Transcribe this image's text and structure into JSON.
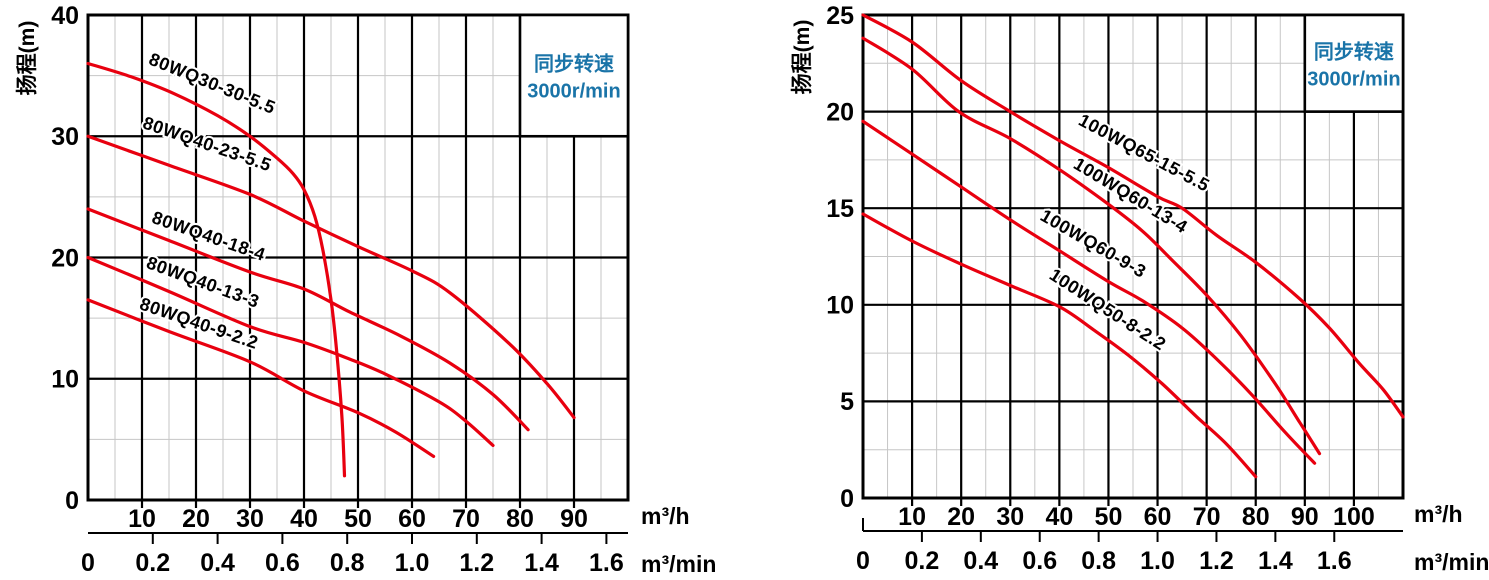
{
  "figure": {
    "ylabel": "扬程(m)",
    "unit_flow_hour": "m³/h",
    "unit_flow_minute": "m³/min",
    "speed_note_line1": "同步转速",
    "speed_note_line2": "3000r/min"
  },
  "colors": {
    "curve_red": "#e8000f",
    "speed_blue": "#1a74a8",
    "grid_minor": "#c6c6c6",
    "grid_major": "#000000",
    "background": "#ffffff"
  },
  "chart_data": [
    {
      "type": "line",
      "title": "同步转速 3000r/min",
      "ylabel": "扬程(m)",
      "xlabel": "m³/h",
      "xlabel2": "m³/min",
      "x_range": [
        0,
        100
      ],
      "y_range": [
        0,
        40
      ],
      "x_major_step": 10,
      "x_minor_step": 5,
      "y_major_step": 10,
      "y_minor_step": 5,
      "grid": "on",
      "y_ticks": [
        0,
        10,
        20,
        30,
        40
      ],
      "x_ticks": [
        10,
        20,
        30,
        40,
        50,
        60,
        70,
        80,
        90
      ],
      "x2_ticks": [
        "0",
        "0.2",
        "0.4",
        "0.6",
        "0.8",
        "1.0",
        "1.2",
        "1.4",
        "1.6"
      ],
      "x2_values": [
        0,
        0.2,
        0.4,
        0.6,
        0.8,
        1.0,
        1.2,
        1.4,
        1.6
      ],
      "x2_start_tick": false,
      "speed_box": {
        "x": [
          80,
          100
        ],
        "y": [
          30,
          40
        ]
      },
      "legend_position": "top-right",
      "series": [
        {
          "name": "80WQ30-30-5.5",
          "label_at": [
            22.6,
            33.9
          ],
          "label_angle": 22,
          "points": [
            [
              0,
              36
            ],
            [
              8,
              34.9
            ],
            [
              16,
              33.5
            ],
            [
              24,
              31.7
            ],
            [
              30,
              30
            ],
            [
              35,
              28.2
            ],
            [
              38,
              26.9
            ],
            [
              40,
              25.6
            ],
            [
              42,
              23.4
            ],
            [
              43.5,
              20.6
            ],
            [
              45,
              16.5
            ],
            [
              46,
              12.5
            ],
            [
              47,
              7
            ],
            [
              47.5,
              2
            ]
          ]
        },
        {
          "name": "80WQ40-23-5.5",
          "label_at": [
            21.7,
            28.9
          ],
          "label_angle": 19,
          "points": [
            [
              0,
              30
            ],
            [
              15,
              27.6
            ],
            [
              30,
              25.2
            ],
            [
              40,
              23
            ],
            [
              50,
              20.9
            ],
            [
              60,
              18.9
            ],
            [
              67,
              17.1
            ],
            [
              78,
              12.9
            ],
            [
              85,
              9.6
            ],
            [
              90,
              6.8
            ]
          ]
        },
        {
          "name": "80WQ40-18-4",
          "label_at": [
            22,
            21.3
          ],
          "label_angle": 19,
          "points": [
            [
              0,
              24
            ],
            [
              15,
              21.4
            ],
            [
              30,
              18.8
            ],
            [
              40,
              17.4
            ],
            [
              48.5,
              15.5
            ],
            [
              58,
              13.5
            ],
            [
              67,
              11.3
            ],
            [
              75,
              8.7
            ],
            [
              81.5,
              5.8
            ]
          ]
        },
        {
          "name": "80WQ40-13-3",
          "label_at": [
            20.9,
            17.5
          ],
          "label_angle": 20,
          "points": [
            [
              0,
              20
            ],
            [
              15,
              17.2
            ],
            [
              30,
              14.3
            ],
            [
              40,
              13
            ],
            [
              48,
              11.7
            ],
            [
              55,
              10.4
            ],
            [
              65,
              8.1
            ],
            [
              70,
              6.5
            ],
            [
              75,
              4.5
            ]
          ]
        },
        {
          "name": "80WQ40-9-2.2",
          "label_at": [
            20.2,
            14.1
          ],
          "label_angle": 19,
          "points": [
            [
              0,
              16.5
            ],
            [
              15,
              13.9
            ],
            [
              30,
              11.4
            ],
            [
              40,
              9
            ],
            [
              50,
              7.2
            ],
            [
              57,
              5.6
            ],
            [
              64,
              3.6
            ]
          ]
        }
      ]
    },
    {
      "type": "line",
      "title": "同步转速 3000r/min",
      "ylabel": "扬程(m)",
      "xlabel": "m³/h",
      "xlabel2": "m³/min",
      "x_range": [
        0,
        110
      ],
      "y_range": [
        0,
        25
      ],
      "x_major_step": 10,
      "x_minor_step": 5,
      "y_major_step": 5,
      "y_minor_step": 2.5,
      "grid": "on",
      "y_ticks": [
        0,
        5,
        10,
        15,
        20,
        25
      ],
      "x_ticks": [
        10,
        20,
        30,
        40,
        50,
        60,
        70,
        80,
        90,
        100
      ],
      "x2_ticks": [
        "0",
        "0.2",
        "0.4",
        "0.6",
        "0.8",
        "1.0",
        "1.2",
        "1.4",
        "1.6"
      ],
      "x2_values": [
        0,
        0.2,
        0.4,
        0.6,
        0.8,
        1.0,
        1.2,
        1.4,
        1.6
      ],
      "x2_start_tick": true,
      "speed_box": {
        "x": [
          90,
          110
        ],
        "y": [
          20,
          25
        ]
      },
      "legend_position": "top-right",
      "series": [
        {
          "name": "100WQ65-15-5.5",
          "label_at": [
            56.7,
            17.6
          ],
          "label_angle": 28,
          "points": [
            [
              0,
              25
            ],
            [
              10,
              23.6
            ],
            [
              20,
              21.6
            ],
            [
              30,
              20
            ],
            [
              40,
              18.5
            ],
            [
              50,
              17.1
            ],
            [
              60,
              15.6
            ],
            [
              65,
              15
            ],
            [
              72,
              13.6
            ],
            [
              80,
              12.2
            ],
            [
              89,
              10.3
            ],
            [
              95,
              8.8
            ],
            [
              101,
              7
            ],
            [
              106,
              5.6
            ],
            [
              110,
              4.2
            ]
          ]
        },
        {
          "name": "100WQ60-13-4",
          "label_at": [
            53.9,
            15.4
          ],
          "label_angle": 31,
          "points": [
            [
              0,
              23.8
            ],
            [
              10,
              22.2
            ],
            [
              19.5,
              20
            ],
            [
              30,
              18.6
            ],
            [
              40,
              17
            ],
            [
              50,
              15.2
            ],
            [
              57,
              13.8
            ],
            [
              63,
              12.3
            ],
            [
              70,
              10.5
            ],
            [
              77,
              8.4
            ],
            [
              84,
              5.9
            ],
            [
              89,
              3.9
            ],
            [
              93,
              2.3
            ]
          ]
        },
        {
          "name": "100WQ60-9-3",
          "label_at": [
            46.3,
            12.9
          ],
          "label_angle": 30,
          "points": [
            [
              0,
              19.5
            ],
            [
              10,
              17.8
            ],
            [
              20,
              16.1
            ],
            [
              30,
              14.4
            ],
            [
              40,
              12.8
            ],
            [
              50,
              11.2
            ],
            [
              57,
              10.2
            ],
            [
              65,
              8.8
            ],
            [
              72,
              7.2
            ],
            [
              79,
              5.4
            ],
            [
              86,
              3.4
            ],
            [
              92,
              1.8
            ]
          ]
        },
        {
          "name": "100WQ50-8-2.2",
          "label_at": [
            49.2,
            9.5
          ],
          "label_angle": 33,
          "points": [
            [
              0,
              14.7
            ],
            [
              10,
              13.3
            ],
            [
              20,
              12.1
            ],
            [
              30,
              11
            ],
            [
              40,
              9.9
            ],
            [
              47,
              8.7
            ],
            [
              54,
              7.4
            ],
            [
              61,
              5.9
            ],
            [
              68,
              4.2
            ],
            [
              74,
              2.8
            ],
            [
              80,
              1.1
            ]
          ]
        }
      ]
    }
  ]
}
